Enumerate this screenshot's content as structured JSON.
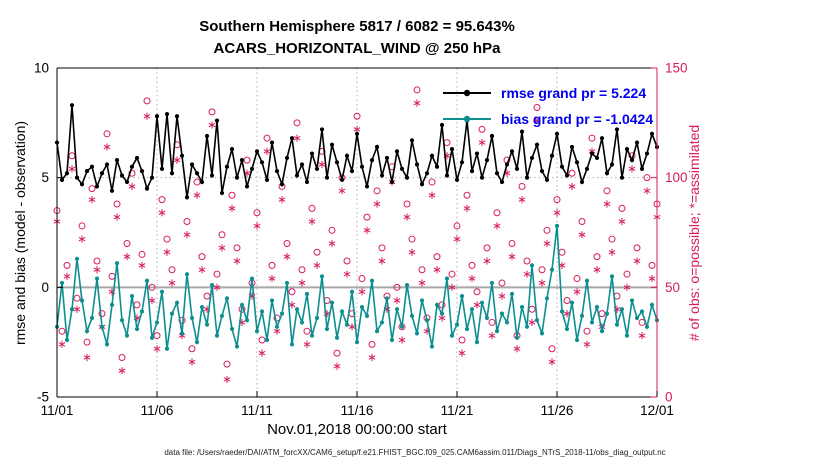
{
  "footer": {
    "text": "data file: /Users/raeder/DAI/ATM_forcXX/CAM6_setup/f.e21.FHIST_BGC.f09_025.CAM6assim.011/Diags_NTrS_2018-11/obs_diag_output.nc"
  },
  "chart_data": {
    "type": "line",
    "title": "Southern Hemisphere 5817 / 6082 = 95.643%",
    "subtitle": "ACARS_HORIZONTAL_WIND @ 250 hPa",
    "xlabel": "Nov.01,2018 00:00:00 start",
    "ylabel_left": "rmse and bias (model - observation)",
    "ylabel_right": "# of obs: o=possible; *=assimilated",
    "x_start": "11/01 00:00",
    "x_step_hours": 6,
    "ylim_left": [
      -5,
      10
    ],
    "ylim_right": [
      0,
      150
    ],
    "yticks_left": [
      -5,
      0,
      5,
      10
    ],
    "ytick_labels_left": [
      "-5",
      "0",
      "5",
      "10"
    ],
    "yticks_right": [
      0,
      50,
      100,
      150
    ],
    "ytick_labels_right": [
      "0",
      "50",
      "100",
      "150"
    ],
    "xtick_indices": [
      0,
      20,
      40,
      60,
      80,
      100,
      120
    ],
    "xtick_labels": [
      "11/01",
      "11/06",
      "11/11",
      "11/16",
      "11/21",
      "11/26",
      "12/01"
    ],
    "grid": true,
    "zero_line": true,
    "legend_position": "top-right-inside",
    "colors": {
      "rmse": "#000000",
      "bias": "#0d8f8f",
      "obs": "#d81b60",
      "legend_text": "#0000ee",
      "zero_line": "#a8a8a8",
      "grid": "#b0b0b0"
    },
    "series": [
      {
        "name": "rmse",
        "legend": "rmse grand pr = 5.224",
        "grand_value": 5.224,
        "values": [
          6.6,
          4.9,
          5.2,
          8.3,
          5.0,
          4.7,
          5.3,
          5.5,
          4.6,
          5.2,
          5.6,
          4.4,
          5.8,
          5.1,
          4.8,
          5.5,
          5.9,
          5.3,
          4.5,
          5.0,
          7.8,
          5.4,
          7.9,
          5.2,
          7.8,
          6.0,
          4.1,
          5.6,
          5.2,
          4.8,
          6.9,
          5.1,
          7.6,
          4.3,
          5.5,
          6.3,
          5.0,
          5.8,
          4.6,
          5.4,
          6.2,
          5.7,
          4.9,
          6.6,
          5.3,
          4.7,
          5.9,
          6.8,
          5.1,
          5.6,
          4.8,
          6.1,
          5.4,
          7.2,
          5.0,
          6.5,
          5.7,
          4.9,
          6.0,
          5.3,
          7.0,
          5.5,
          4.6,
          5.8,
          6.4,
          5.1,
          5.9,
          4.8,
          6.2,
          5.4,
          5.0,
          6.7,
          5.6,
          4.7,
          5.2,
          6.0,
          5.5,
          7.4,
          5.1,
          6.3,
          4.9,
          5.7,
          7.6,
          5.3,
          6.1,
          5.0,
          5.8,
          6.9,
          5.2,
          4.8,
          5.6,
          6.2,
          5.4,
          7.1,
          5.0,
          5.9,
          6.5,
          5.3,
          4.9,
          6.0,
          7.0,
          5.5,
          5.1,
          6.4,
          5.7,
          4.8,
          5.4,
          6.1,
          5.9,
          6.8,
          5.2,
          5.6,
          7.2,
          5.0,
          6.3,
          5.8,
          6.6,
          5.4,
          6.1,
          7.0,
          6.4
        ]
      },
      {
        "name": "bias",
        "legend": "bias grand pr = -1.0424",
        "grand_value": -1.0424,
        "values": [
          -1.8,
          0.2,
          -2.4,
          -1.0,
          1.3,
          -0.6,
          -2.0,
          -1.4,
          0.4,
          -1.8,
          -2.6,
          -0.8,
          1.1,
          -1.5,
          -2.2,
          -0.4,
          -1.9,
          -1.1,
          0.3,
          -2.3,
          -1.6,
          -0.2,
          -2.8,
          -1.2,
          -0.7,
          -2.1,
          0.6,
          -1.4,
          -2.5,
          -0.9,
          -1.7,
          0.1,
          -2.2,
          -1.3,
          -0.5,
          -1.9,
          -2.7,
          -0.8,
          -1.5,
          0.4,
          -2.0,
          -1.1,
          -2.4,
          -0.6,
          -1.8,
          -1.2,
          0.2,
          -2.6,
          -1.0,
          -1.6,
          -0.3,
          -2.2,
          -1.4,
          0.5,
          -1.9,
          -0.7,
          -2.3,
          -1.1,
          -1.7,
          -0.2,
          -2.5,
          -0.9,
          -1.3,
          0.3,
          -2.0,
          -1.6,
          -0.5,
          -2.4,
          -1.0,
          -1.8,
          0.1,
          -1.3,
          -2.1,
          -0.6,
          -1.5,
          -2.7,
          -0.8,
          -1.2,
          0.4,
          -2.2,
          -1.7,
          -0.4,
          -1.9,
          -1.0,
          -2.5,
          -0.7,
          -1.4,
          0.2,
          -2.0,
          -1.2,
          -1.6,
          -0.3,
          -2.3,
          -0.9,
          -1.8,
          1.0,
          -1.5,
          -2.1,
          -0.5,
          0.8,
          2.8,
          -1.1,
          -1.9,
          -0.7,
          -2.4,
          -1.3,
          0.3,
          -1.6,
          -0.9,
          -2.0,
          -1.2,
          0.5,
          -1.7,
          -1.0,
          -2.2,
          -0.6,
          -1.4,
          -1.1,
          -1.8,
          -0.8,
          -1.5
        ]
      }
    ],
    "scatter": [
      {
        "name": "possible",
        "marker": "o",
        "values": [
          85,
          30,
          60,
          110,
          45,
          78,
          25,
          95,
          62,
          38,
          120,
          55,
          88,
          18,
          70,
          102,
          42,
          65,
          135,
          50,
          28,
          90,
          72,
          58,
          115,
          35,
          80,
          22,
          98,
          64,
          46,
          130,
          56,
          74,
          15,
          92,
          68,
          40,
          108,
          52,
          84,
          26,
          118,
          60,
          36,
          96,
          70,
          48,
          125,
          58,
          30,
          86,
          66,
          112,
          44,
          76,
          20,
          100,
          62,
          38,
          128,
          54,
          82,
          24,
          94,
          68,
          46,
          105,
          50,
          32,
          88,
          72,
          140,
          58,
          36,
          98,
          64,
          42,
          116,
          56,
          78,
          26,
          92,
          60,
          48,
          122,
          68,
          34,
          84,
          52,
          108,
          70,
          28,
          96,
          62,
          40,
          132,
          58,
          76,
          22,
          90,
          66,
          44,
          102,
          54,
          80,
          30,
          118,
          64,
          38,
          94,
          72,
          46,
          86,
          56,
          110,
          68,
          34,
          100,
          60,
          88
        ]
      },
      {
        "name": "assimilated",
        "marker": "*",
        "values": [
          80,
          24,
          55,
          104,
          40,
          72,
          18,
          90,
          58,
          32,
          114,
          48,
          82,
          12,
          64,
          96,
          36,
          60,
          128,
          44,
          22,
          84,
          66,
          52,
          108,
          28,
          74,
          16,
          92,
          58,
          40,
          124,
          50,
          68,
          8,
          86,
          62,
          34,
          102,
          46,
          78,
          20,
          112,
          54,
          30,
          90,
          64,
          42,
          118,
          52,
          24,
          80,
          60,
          106,
          38,
          70,
          14,
          94,
          56,
          32,
          122,
          48,
          76,
          18,
          88,
          62,
          40,
          98,
          44,
          26,
          82,
          66,
          134,
          52,
          30,
          92,
          58,
          36,
          110,
          50,
          72,
          20,
          86,
          54,
          42,
          116,
          62,
          28,
          78,
          46,
          102,
          64,
          22,
          90,
          56,
          34,
          126,
          52,
          70,
          16,
          84,
          60,
          38,
          96,
          48,
          74,
          24,
          112,
          58,
          32,
          88,
          66,
          40,
          80,
          50,
          104,
          62,
          28,
          94,
          54,
          82
        ]
      }
    ]
  }
}
